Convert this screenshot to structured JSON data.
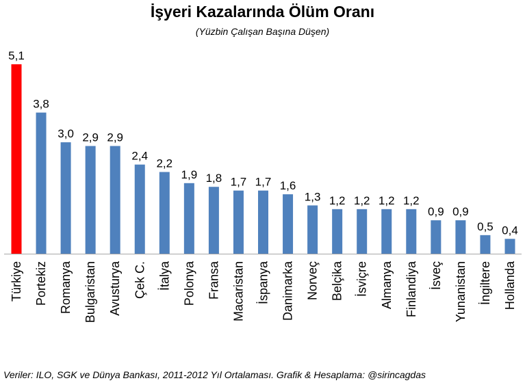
{
  "chart_data": {
    "type": "bar",
    "title": "İşyeri Kazalarında Ölüm Oranı",
    "subtitle": "(Yüzbin Çalışan Başına Düşen)",
    "categories": [
      "Türkiye",
      "Portekiz",
      "Romanya",
      "Bulgaristan",
      "Avusturya",
      "Çek C.",
      "İtalya",
      "Polonya",
      "Fransa",
      "Macaristan",
      "İspanya",
      "Danimarka",
      "Norveç",
      "Belçika",
      "İsviçre",
      "Almanya",
      "Finlandiya",
      "İsveç",
      "Yunanistan",
      "İngiltere",
      "Hollanda"
    ],
    "values": [
      5.1,
      3.8,
      3.0,
      2.9,
      2.9,
      2.4,
      2.2,
      1.9,
      1.8,
      1.7,
      1.7,
      1.6,
      1.3,
      1.2,
      1.2,
      1.2,
      1.2,
      0.9,
      0.9,
      0.5,
      0.4
    ],
    "value_labels": [
      "5,1",
      "3,8",
      "3,0",
      "2,9",
      "2,9",
      "2,4",
      "2,2",
      "1,9",
      "1,8",
      "1,7",
      "1,7",
      "1,6",
      "1,3",
      "1,2",
      "1,2",
      "1,2",
      "1,2",
      "0,9",
      "0,9",
      "0,5",
      "0,4"
    ],
    "highlight_index": 0,
    "colors": {
      "bar": "#4f81bd",
      "highlight": "#ff0000",
      "axis": "#a6a6a6"
    },
    "ylim": [
      0,
      5.1
    ],
    "grid": false,
    "legend": "none"
  },
  "footer": "Veriler: ILO, SGK ve Dünya Bankası, 2011-2012 Yıl Ortalaması. Grafik & Hesaplama: @sirincagdas"
}
